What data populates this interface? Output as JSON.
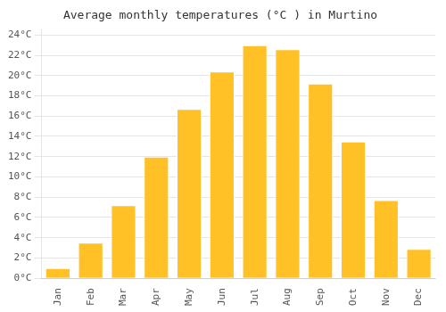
{
  "chart_data": {
    "type": "bar",
    "title": "Average monthly temperatures (°C ) in Murtino",
    "categories": [
      "Jan",
      "Feb",
      "Mar",
      "Apr",
      "May",
      "Jun",
      "Jul",
      "Aug",
      "Sep",
      "Oct",
      "Nov",
      "Dec"
    ],
    "values": [
      1.0,
      3.5,
      7.2,
      12.0,
      16.7,
      20.4,
      23.0,
      22.6,
      19.2,
      13.5,
      7.7,
      2.9
    ],
    "color": "#FFC125",
    "ylim": [
      0,
      24.5
    ],
    "yticks": [
      {
        "value": 0,
        "label": "0°C"
      },
      {
        "value": 2,
        "label": "2°C"
      },
      {
        "value": 4,
        "label": "4°C"
      },
      {
        "value": 6,
        "label": "6°C"
      },
      {
        "value": 8,
        "label": "8°C"
      },
      {
        "value": 10,
        "label": "10°C"
      },
      {
        "value": 12,
        "label": "12°C"
      },
      {
        "value": 14,
        "label": "14°C"
      },
      {
        "value": 16,
        "label": "16°C"
      },
      {
        "value": 18,
        "label": "18°C"
      },
      {
        "value": 20,
        "label": "20°C"
      },
      {
        "value": 22,
        "label": "22°C"
      },
      {
        "value": 24,
        "label": "24°C"
      }
    ],
    "grid": "y"
  }
}
